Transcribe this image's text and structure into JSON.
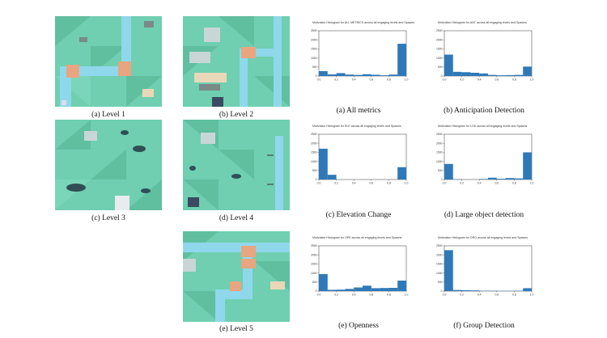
{
  "levels": [
    {
      "caption": "(a) Level 1"
    },
    {
      "caption": "(b) Level 2"
    },
    {
      "caption": "(c) Level 3"
    },
    {
      "caption": "(d) Level 4"
    },
    {
      "caption": "(e) Level 5"
    }
  ],
  "colors": {
    "grass": "#6fcfb0",
    "grass_dark": "#5fbf9f",
    "water": "#8fd8ec",
    "bridge": "#e8a57f",
    "path": "#e9d8b8",
    "bar": "#2f79b8"
  },
  "chart_data": [
    {
      "type": "bar",
      "caption": "(a) All metrics",
      "title": "Motivation Histogram for ALL METRICS across all engaging levels and Spawns",
      "x": [
        0.0,
        0.1,
        0.2,
        0.3,
        0.4,
        0.5,
        0.6,
        0.7,
        0.8,
        0.9
      ],
      "values": [
        270,
        90,
        160,
        80,
        60,
        100,
        70,
        40,
        80,
        1780
      ],
      "yticks": [
        "0",
        "500",
        "1000",
        "1500",
        "2000",
        "2500"
      ],
      "xticks": [
        "0.0",
        "0.2",
        "0.4",
        "0.6",
        "0.8",
        "1.0"
      ],
      "ylim": [
        0,
        2500
      ]
    },
    {
      "type": "bar",
      "caption": "(b) Anticipation Detection",
      "title": "Motivation Histogram for ANT across all engaging levels and Spawns",
      "x": [
        0.0,
        0.1,
        0.2,
        0.3,
        0.4,
        0.5,
        0.6,
        0.7,
        0.8,
        0.9
      ],
      "values": [
        1180,
        230,
        210,
        180,
        140,
        60,
        40,
        50,
        60,
        520
      ],
      "yticks": [
        "0",
        "500",
        "1000",
        "1500",
        "2000",
        "2500"
      ],
      "xticks": [
        "0.0",
        "0.2",
        "0.4",
        "0.6",
        "0.8",
        "1.0"
      ],
      "ylim": [
        0,
        2500
      ]
    },
    {
      "type": "bar",
      "caption": "(c) Elevation Change",
      "title": "Motivation Histogram for ELE across all engaging levels and Spawns",
      "x": [
        0.0,
        0.1,
        0.2,
        0.3,
        0.4,
        0.5,
        0.6,
        0.7,
        0.8,
        0.9
      ],
      "values": [
        1700,
        260,
        0,
        0,
        0,
        0,
        0,
        0,
        0,
        680
      ],
      "yticks": [
        "0",
        "500",
        "1000",
        "1500",
        "2000",
        "2500"
      ],
      "xticks": [
        "0.0",
        "0.2",
        "0.4",
        "0.6",
        "0.8",
        "1.0"
      ],
      "ylim": [
        0,
        2500
      ]
    },
    {
      "type": "bar",
      "caption": "(d) Large object detection",
      "title": "Motivation Histogram for LOD across all engaging levels and Spawns",
      "x": [
        0.0,
        0.1,
        0.2,
        0.3,
        0.4,
        0.5,
        0.6,
        0.7,
        0.8,
        0.9
      ],
      "values": [
        860,
        20,
        0,
        0,
        30,
        100,
        40,
        80,
        60,
        1500
      ],
      "yticks": [
        "0",
        "500",
        "1000",
        "1500",
        "2000",
        "2500"
      ],
      "xticks": [
        "0.0",
        "0.2",
        "0.4",
        "0.6",
        "0.8",
        "1.0"
      ],
      "ylim": [
        0,
        2500
      ]
    },
    {
      "type": "bar",
      "caption": "(e) Openness",
      "title": "Motivation Histogram for OPE across all engaging levels and Spawns",
      "x": [
        0.0,
        0.1,
        0.2,
        0.3,
        0.4,
        0.5,
        0.6,
        0.7,
        0.8,
        0.9
      ],
      "values": [
        940,
        70,
        80,
        120,
        200,
        300,
        160,
        170,
        180,
        580
      ],
      "yticks": [
        "0",
        "500",
        "1000",
        "1500",
        "2000",
        "2500"
      ],
      "xticks": [
        "0.0",
        "0.2",
        "0.4",
        "0.6",
        "0.8",
        "1.0"
      ],
      "ylim": [
        0,
        2500
      ]
    },
    {
      "type": "bar",
      "caption": "(f) Group Detection",
      "title": "Motivation Histogram for GRO across all engaging levels and Spawns",
      "x": [
        0.0,
        0.1,
        0.2,
        0.3,
        0.4,
        0.5,
        0.6,
        0.7,
        0.8,
        0.9
      ],
      "values": [
        2260,
        60,
        50,
        40,
        20,
        15,
        10,
        10,
        20,
        160
      ],
      "yticks": [
        "0",
        "500",
        "1000",
        "1500",
        "2000",
        "2500"
      ],
      "xticks": [
        "0.0",
        "0.2",
        "0.4",
        "0.6",
        "0.8",
        "1.0"
      ],
      "ylim": [
        0,
        2500
      ]
    }
  ]
}
